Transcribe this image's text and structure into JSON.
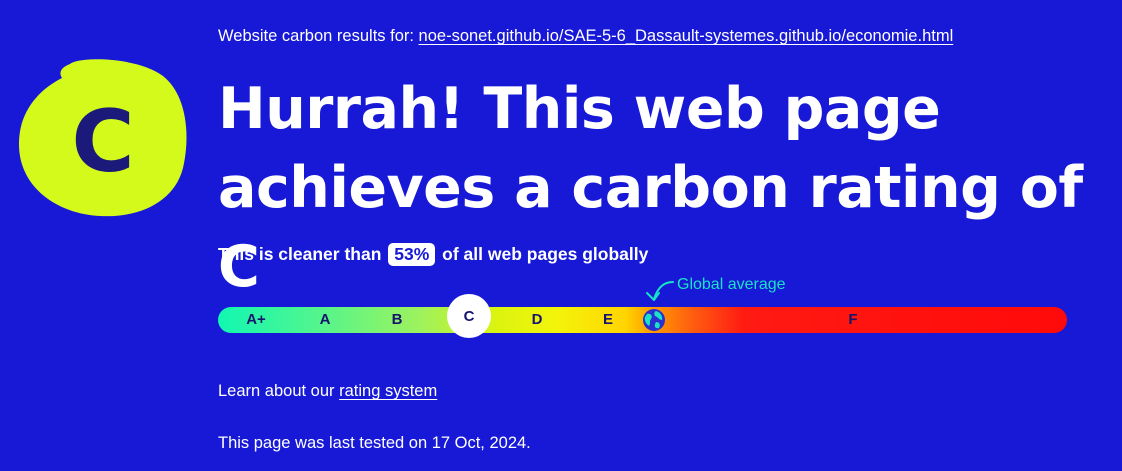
{
  "badge": {
    "letter": "C",
    "color": "#d4fa1c",
    "letter_color": "#1b1a7a"
  },
  "results_for": {
    "label": "Website carbon results for:",
    "url": "noe-sonet.github.io/SAE-5-6_Dassault-systemes.github.io/economie.html"
  },
  "headline": {
    "line1": "Hurrah! This web page",
    "line2": "achieves a carbon rating of C"
  },
  "cleaner": {
    "prefix": "This is cleaner than",
    "percent": "53%",
    "suffix": "of all web pages globally"
  },
  "rating_bar": {
    "grades": [
      "A+",
      "A",
      "B",
      "C",
      "D",
      "E",
      "F"
    ],
    "current_grade": "C",
    "global_average_label": "Global average",
    "global_average_icon": "globe-icon",
    "annotation_icon": "curved-arrow-icon"
  },
  "learn": {
    "prefix": "Learn about our",
    "link": "rating system"
  },
  "tested": {
    "text": "This page was last tested on 17 Oct, 2024."
  },
  "colors": {
    "background": "#1719d6",
    "accent": "#19e3c7",
    "text": "#ffffff"
  }
}
